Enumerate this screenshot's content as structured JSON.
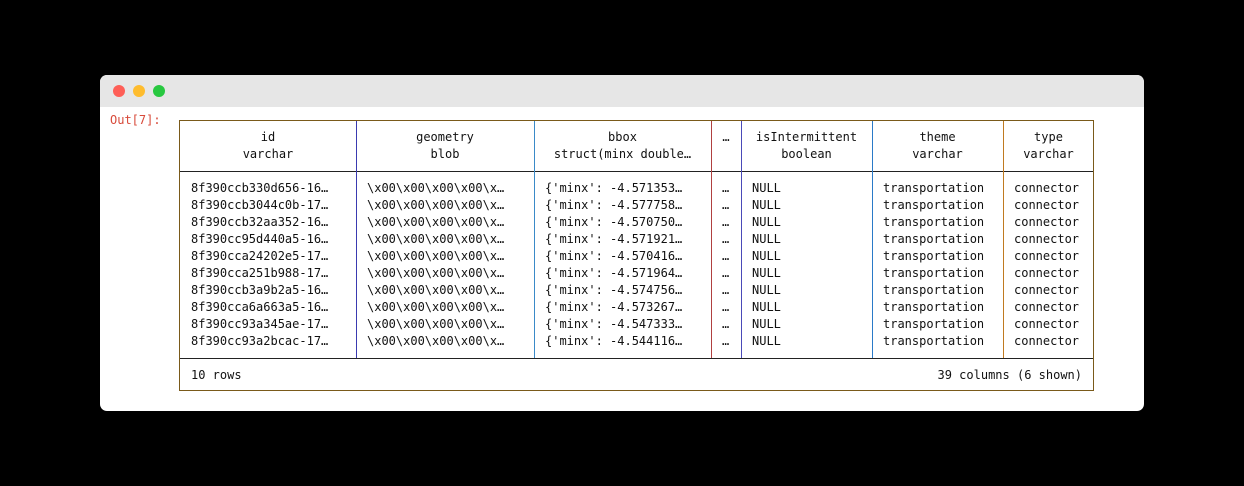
{
  "window": {
    "colors": {
      "close": "#fe5f57",
      "minimize": "#febc2e",
      "maximize": "#28c840"
    }
  },
  "prompt": "Out[7]:",
  "table": {
    "columns": [
      {
        "name": "id",
        "type": "varchar"
      },
      {
        "name": "geometry",
        "type": "blob"
      },
      {
        "name": "bbox",
        "type": "struct(minx double…"
      },
      {
        "name": "…",
        "type": ""
      },
      {
        "name": "isIntermittent",
        "type": "boolean"
      },
      {
        "name": "theme",
        "type": "varchar"
      },
      {
        "name": "type",
        "type": "varchar"
      }
    ],
    "rows": [
      [
        "8f390ccb330d656-16…",
        "\\x00\\x00\\x00\\x00\\x…",
        "{'minx': -4.571353…",
        "…",
        "NULL",
        "transportation",
        "connector"
      ],
      [
        "8f390ccb3044c0b-17…",
        "\\x00\\x00\\x00\\x00\\x…",
        "{'minx': -4.577758…",
        "…",
        "NULL",
        "transportation",
        "connector"
      ],
      [
        "8f390ccb32aa352-16…",
        "\\x00\\x00\\x00\\x00\\x…",
        "{'minx': -4.570750…",
        "…",
        "NULL",
        "transportation",
        "connector"
      ],
      [
        "8f390cc95d440a5-16…",
        "\\x00\\x00\\x00\\x00\\x…",
        "{'minx': -4.571921…",
        "…",
        "NULL",
        "transportation",
        "connector"
      ],
      [
        "8f390cca24202e5-17…",
        "\\x00\\x00\\x00\\x00\\x…",
        "{'minx': -4.570416…",
        "…",
        "NULL",
        "transportation",
        "connector"
      ],
      [
        "8f390cca251b988-17…",
        "\\x00\\x00\\x00\\x00\\x…",
        "{'minx': -4.571964…",
        "…",
        "NULL",
        "transportation",
        "connector"
      ],
      [
        "8f390ccb3a9b2a5-16…",
        "\\x00\\x00\\x00\\x00\\x…",
        "{'minx': -4.574756…",
        "…",
        "NULL",
        "transportation",
        "connector"
      ],
      [
        "8f390cca6a663a5-16…",
        "\\x00\\x00\\x00\\x00\\x…",
        "{'minx': -4.573267…",
        "…",
        "NULL",
        "transportation",
        "connector"
      ],
      [
        "8f390cc93a345ae-17…",
        "\\x00\\x00\\x00\\x00\\x…",
        "{'minx': -4.547333…",
        "…",
        "NULL",
        "transportation",
        "connector"
      ],
      [
        "8f390cc93a2bcac-17…",
        "\\x00\\x00\\x00\\x00\\x…",
        "{'minx': -4.544116…",
        "…",
        "NULL",
        "transportation",
        "connector"
      ]
    ],
    "footer": {
      "rows": "10 rows",
      "columns": "39 columns (6 shown)"
    }
  }
}
